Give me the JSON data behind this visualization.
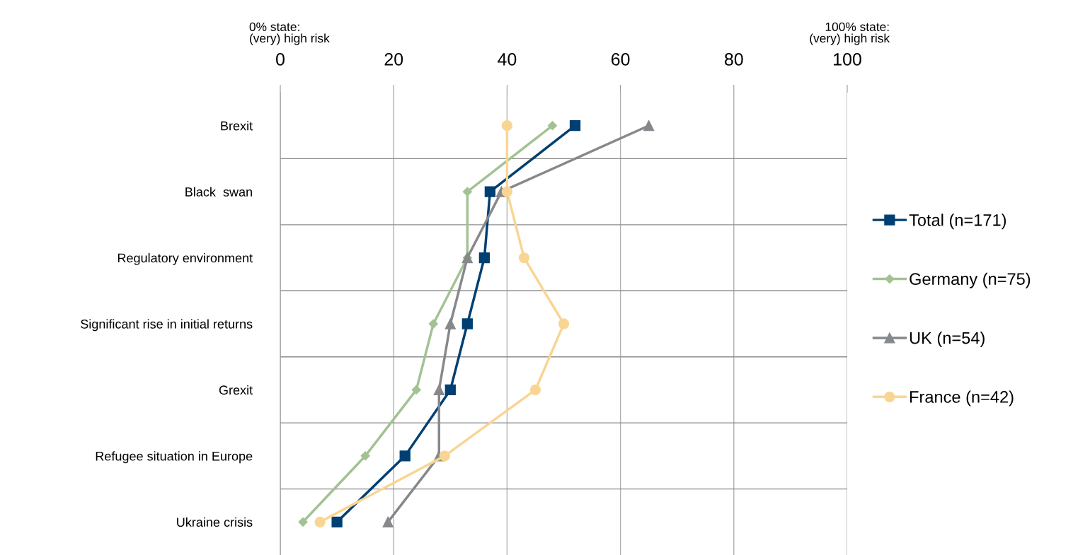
{
  "chart_data": {
    "type": "line",
    "orientation": "horizontal",
    "categories": [
      "Brexit",
      "Black  swan",
      "Regulatory environment",
      "Significant rise in initial returns",
      "Grexit",
      "Refugee situation in Europe",
      "Ukraine crisis"
    ],
    "series": [
      {
        "name": "Total (n=171)",
        "color": "#003f72",
        "marker": "square",
        "values": [
          52,
          37,
          36,
          33,
          30,
          22,
          10
        ]
      },
      {
        "name": "Germany (n=75)",
        "color": "#a3c293",
        "marker": "diamond",
        "values": [
          48,
          33,
          33,
          27,
          24,
          15,
          4
        ]
      },
      {
        "name": "UK (n=54)",
        "color": "#86888c",
        "marker": "triangle",
        "values": [
          65,
          39,
          33,
          30,
          28,
          28,
          19
        ]
      },
      {
        "name": "France (n=42)",
        "color": "#f9d594",
        "marker": "circle",
        "values": [
          40,
          40,
          43,
          50,
          45,
          29,
          7
        ]
      }
    ],
    "xlim": [
      0,
      100
    ],
    "xticks": [
      0,
      20,
      40,
      60,
      80,
      100
    ],
    "grid": true,
    "legend": "right",
    "annotations": [
      "0% state:\n(very) high risk",
      "100% state:\n(very) high risk"
    ]
  }
}
